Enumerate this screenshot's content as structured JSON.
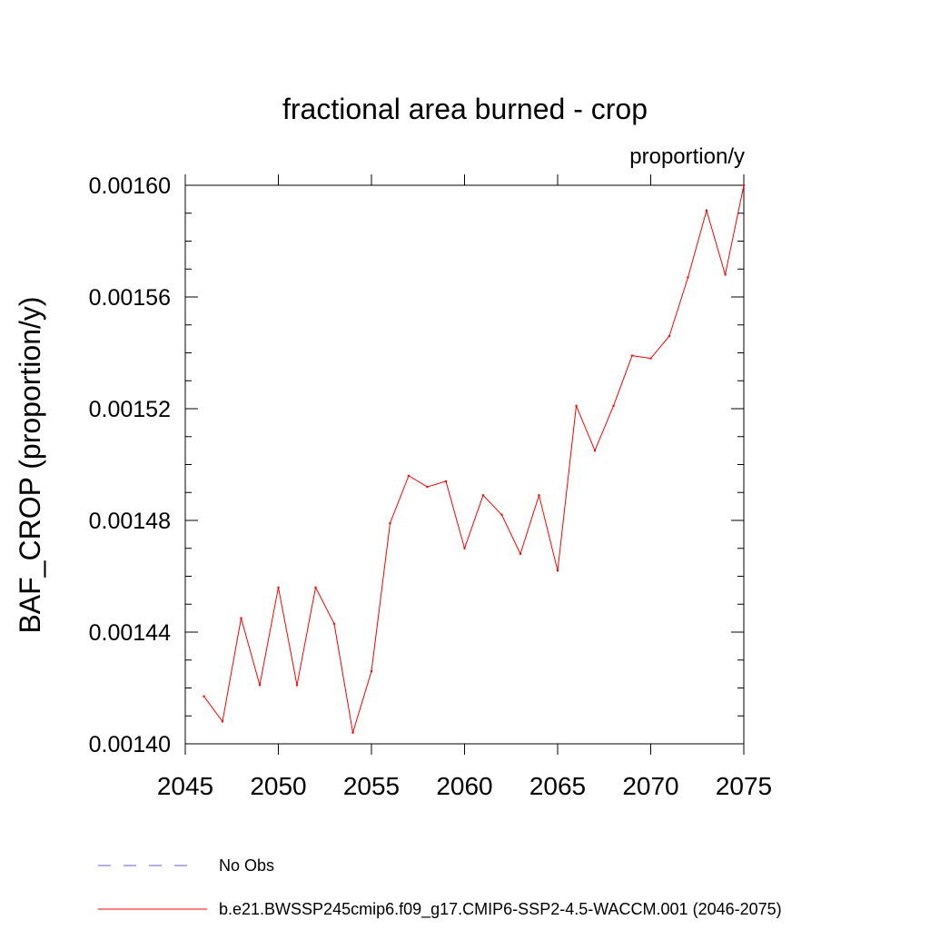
{
  "chart_data": {
    "type": "line",
    "title": "fractional area burned - crop",
    "units": "proportion/y",
    "ylabel": "BAF_CROP  (proportion/y)",
    "xlabel": "",
    "xlim": [
      2045,
      2075
    ],
    "ylim": [
      0.0014,
      0.0016
    ],
    "xticks": [
      "2045",
      "2050",
      "2055",
      "2060",
      "2065",
      "2070",
      "2075"
    ],
    "yticks": [
      "0.00140",
      "0.00144",
      "0.00148",
      "0.00152",
      "0.00156",
      "0.00160"
    ],
    "series": [
      {
        "name": "b.e21.BWSSP245cmip6.f09_g17.CMIP6-SSP2-4.5-WACCM.001 (2046-2075)",
        "color": "#ff0000",
        "style": "solid",
        "x": [
          2046,
          2047,
          2048,
          2049,
          2050,
          2051,
          2052,
          2053,
          2054,
          2055,
          2056,
          2057,
          2058,
          2059,
          2060,
          2061,
          2062,
          2063,
          2064,
          2065,
          2066,
          2067,
          2068,
          2069,
          2070,
          2071,
          2072,
          2073,
          2074,
          2075
        ],
        "values": [
          0.001417,
          0.001408,
          0.001445,
          0.001421,
          0.001456,
          0.001421,
          0.001456,
          0.001443,
          0.001404,
          0.001426,
          0.001479,
          0.001496,
          0.001492,
          0.001494,
          0.00147,
          0.001489,
          0.001482,
          0.001468,
          0.001489,
          0.001462,
          0.001521,
          0.001505,
          0.001521,
          0.001539,
          0.001538,
          0.001546,
          0.001567,
          0.001591,
          0.001568,
          0.0016
        ]
      }
    ],
    "legend": [
      {
        "label": "No Obs",
        "color": "#6a5acd",
        "style": "dashed"
      },
      {
        "label": "b.e21.BWSSP245cmip6.f09_g17.CMIP6-SSP2-4.5-WACCM.001 (2046-2075)",
        "color": "#ff0000",
        "style": "solid"
      }
    ],
    "legend_position": "bottom",
    "grid": false
  }
}
